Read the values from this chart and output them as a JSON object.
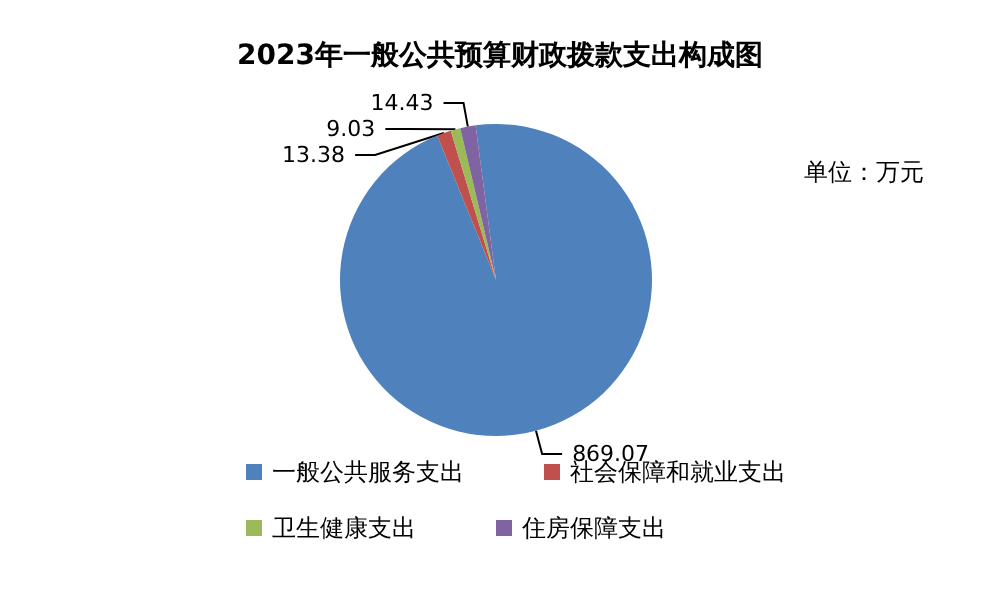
{
  "chart_data": {
    "type": "pie",
    "title": "2023年一般公共预算财政拨款支出构成图",
    "categories": [
      "一般公共服务支出",
      "社会保障和就业支出",
      "卫生健康支出",
      "住房保障支出"
    ],
    "values": [
      869.07,
      13.38,
      9.03,
      14.43
    ],
    "colors": [
      "#4f81bd",
      "#c0504d",
      "#9bbb59",
      "#8064a2"
    ],
    "data_labels": true,
    "legend": "bottom",
    "annotations": [
      "单位：万元"
    ]
  }
}
